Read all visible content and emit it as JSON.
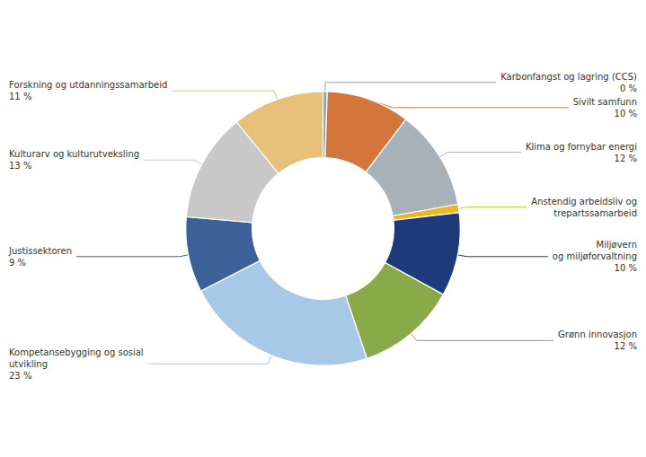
{
  "chart_data": {
    "type": "pie",
    "categories": [
      "Karbonfangst og lagring (CCS)\n0 %",
      "Sivilt samfunn\n10 %",
      "Klima og fornybar energi\n12 %",
      "Anstendig arbeidsliv og\ntrepartssamarbeid",
      "Miljøvern\nog miljøforvaltning\n10 %",
      "Grønn innovasjon\n12 %",
      "Kompetansebygging og sosial\nutvikling\n23 %",
      "Justissektoren\n9 %",
      "Kulturarv og kulturutveksling\n13 %",
      "Forskning og utdanningssamarbeid\n11 %"
    ],
    "values": [
      0.5,
      10,
      12,
      1,
      10,
      12,
      23,
      9,
      13,
      11
    ],
    "colors": [
      "#7fa8c0",
      "#d4763b",
      "#a8b0b8",
      "#e8b820",
      "#1e3a7a",
      "#8aaa4a",
      "#a8c8e8",
      "#3c6098",
      "#c8c8c8",
      "#e8c07a"
    ]
  }
}
